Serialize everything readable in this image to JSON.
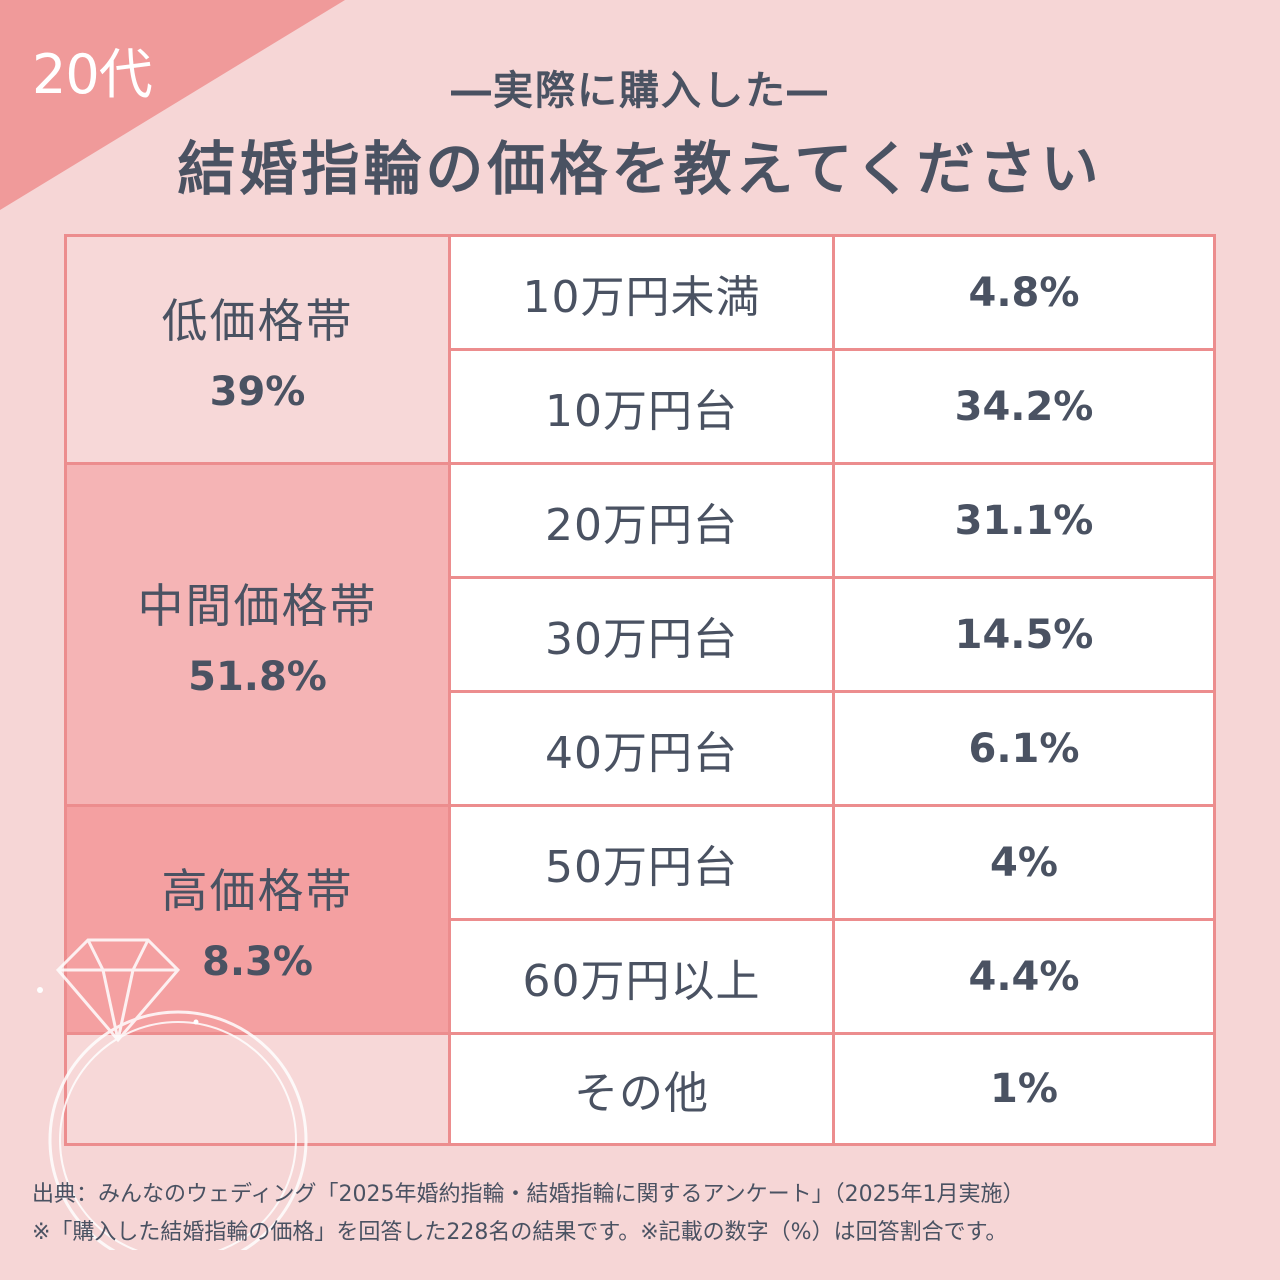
{
  "header": {
    "age": "20代",
    "subtitle": "―実際に購入した―",
    "title": "結婚指輪の価格を教えてください"
  },
  "colors": {
    "background": "#f6d6d6",
    "corner": "#f09a9a",
    "border": "#ec8d8e",
    "low_band": "#f7d8d8",
    "mid_band": "#f5b4b5",
    "high_band": "#f4a0a1",
    "text": "#4a5262"
  },
  "categories": [
    {
      "name": "低価格帯",
      "percent": "39%"
    },
    {
      "name": "中間価格帯",
      "percent": "51.8%"
    },
    {
      "name": "高価格帯",
      "percent": "8.3%"
    }
  ],
  "rows": [
    {
      "range": "10万円未満",
      "percent": "4.8%"
    },
    {
      "range": "10万円台",
      "percent": "34.2%"
    },
    {
      "range": "20万円台",
      "percent": "31.1%"
    },
    {
      "range": "30万円台",
      "percent": "14.5%"
    },
    {
      "range": "40万円台",
      "percent": "6.1%"
    },
    {
      "range": "50万円台",
      "percent": "4%"
    },
    {
      "range": "60万円以上",
      "percent": "4.4%"
    },
    {
      "range": "その他",
      "percent": "1%"
    }
  ],
  "footer": {
    "source": "出典：みんなのウェディング「2025年婚約指輪・結婚指輪に関するアンケート」（2025年1月実施）",
    "note": "※「購入した結婚指輪の価格」を回答した228名の結果です。※記載の数字（%）は回答割合です。"
  }
}
